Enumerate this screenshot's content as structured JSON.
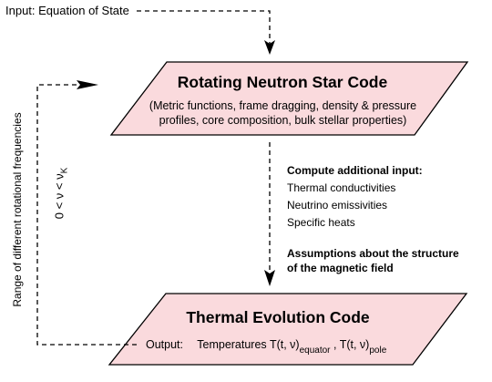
{
  "input_label": "Input: Equation of State",
  "box1": {
    "title": "Rotating Neutron Star Code",
    "desc_line1": "(Metric functions, frame dragging, density & pressure",
    "desc_line2": "profiles, core composition, bulk stellar properties)"
  },
  "compute": {
    "heading": "Compute additional input:",
    "items": [
      "Thermal conductivities",
      "Neutrino emissivities",
      "Specific heats"
    ]
  },
  "assumptions": {
    "line1": "Assumptions about the structure",
    "line2": "of the magnetic field"
  },
  "box2": {
    "title": "Thermal Evolution Code",
    "output_label": "Output:",
    "temperatures_label": "Temperatures",
    "t_symbol": "T(t, ν)",
    "sub_equator": "equator",
    "separator": ",",
    "sub_pole": "pole"
  },
  "side": {
    "range_label": "Range of different rotational frequencies",
    "nu_range": "0 < ν <  ν",
    "nu_sub": "K"
  },
  "colors": {
    "box_fill": "#fadadd",
    "stroke": "#000000"
  }
}
